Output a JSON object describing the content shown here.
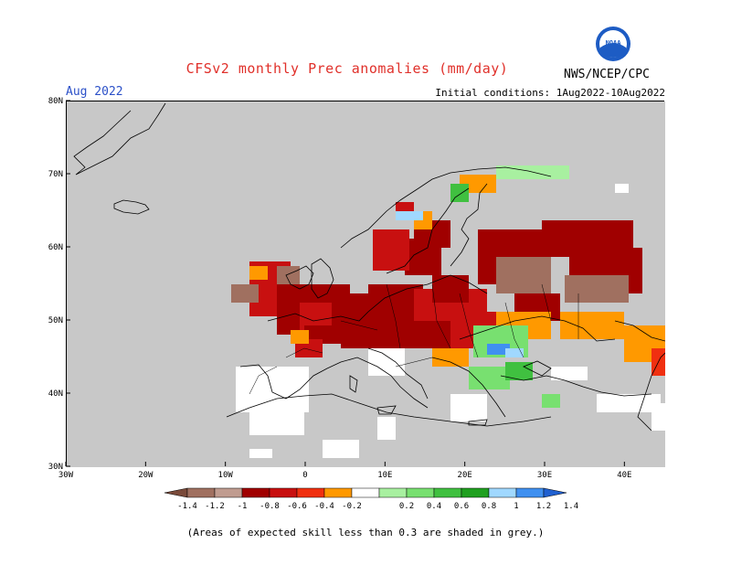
{
  "title": "CFSv2 monthly Prec anomalies (mm/day)",
  "agency": "NWS/NCEP/CPC",
  "logo_text": "NOAA",
  "month": "Aug 2022",
  "initial_conditions": "Initial conditions: 1Aug2022-10Aug2022",
  "note": "(Areas of expected skill less than 0.3 are shaded in grey.)",
  "axes": {
    "x_ticks": [
      "30W",
      "20W",
      "10W",
      "0",
      "10E",
      "20E",
      "30E",
      "40E"
    ],
    "y_ticks": [
      "80N",
      "70N",
      "60N",
      "50N",
      "40N",
      "30N"
    ]
  },
  "legend": {
    "labels": [
      "-1.4",
      "-1.2",
      "-1",
      "-0.8",
      "-0.6",
      "-0.4",
      "-0.2",
      "0.2",
      "0.4",
      "0.6",
      "0.8",
      "1",
      "1.2",
      "1.4"
    ],
    "colors": [
      "#7a4a3a",
      "#a07060",
      "#c09c90",
      "#a00000",
      "#c81010",
      "#f03010",
      "#ff9900",
      "#ffffff",
      "#a8f0a0",
      "#78e070",
      "#40c040",
      "#20a020",
      "#a0d8ff",
      "#4090f0",
      "#2060d0"
    ]
  },
  "colors": {
    "grey_land": "#c8c8c8",
    "title_red": "#e0302a",
    "month_blue": "#2b50c8"
  }
}
